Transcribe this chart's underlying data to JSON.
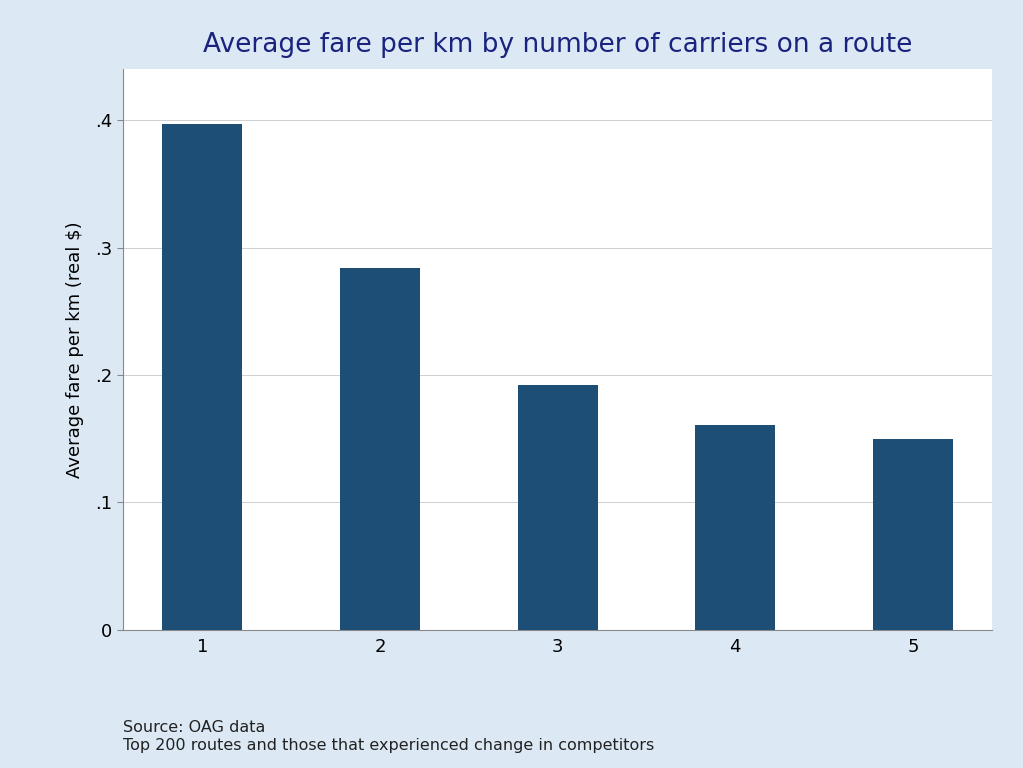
{
  "title": "Average fare per km by number of carriers on a route",
  "categories": [
    "1",
    "2",
    "3",
    "4",
    "5"
  ],
  "values": [
    0.397,
    0.284,
    0.192,
    0.161,
    0.15
  ],
  "bar_color": "#1d4f76",
  "ylabel": "Average fare per km (real $)",
  "ylim": [
    0,
    0.44
  ],
  "yticks": [
    0,
    0.1,
    0.2,
    0.3,
    0.4
  ],
  "ytick_labels": [
    "0",
    ".1",
    ".2",
    ".3",
    ".4"
  ],
  "figure_background_color": "#dce9f5",
  "plot_background_color": "#ffffff",
  "source_text": "Source: OAG data\nTop 200 routes and those that experienced change in competitors",
  "title_fontsize": 19,
  "title_color": "#1a237e",
  "label_fontsize": 13,
  "tick_fontsize": 13,
  "source_fontsize": 11.5,
  "bar_width": 0.45
}
